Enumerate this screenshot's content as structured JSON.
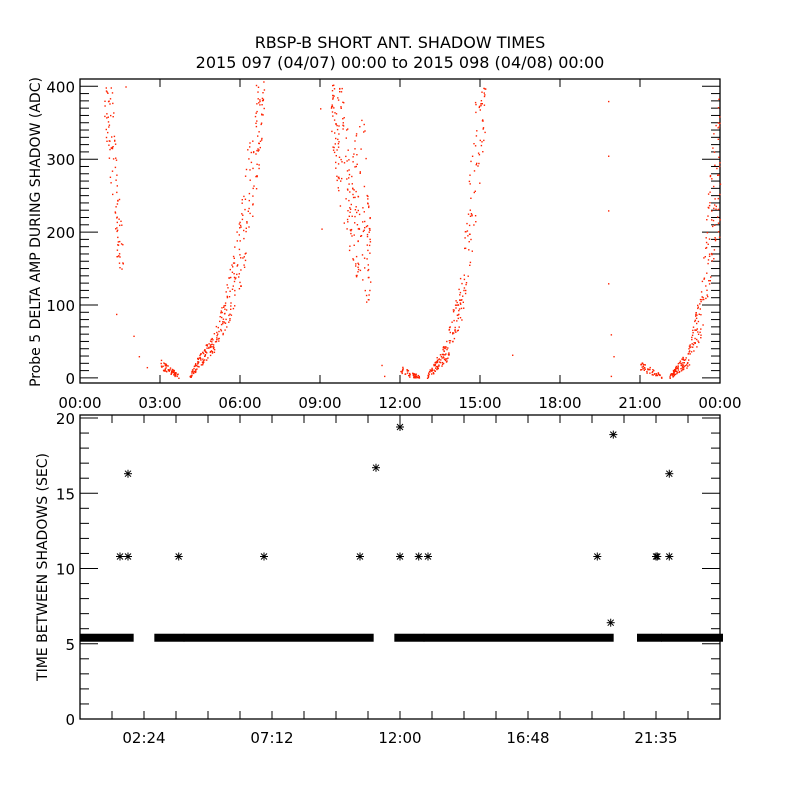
{
  "title": "RBSP-B SHORT ANT. SHADOW TIMES",
  "subtitle": "2015 097 (04/07) 00:00 to 2015 098 (04/08) 00:00",
  "colors": {
    "points_top": "#ff2200",
    "points_bottom": "#000000",
    "axes": "#000000"
  },
  "chart_data": [
    {
      "type": "scatter",
      "title": "RBSP-B SHORT ANT. SHADOW TIMES",
      "xlabel": "",
      "ylabel": "Probe 5 DELTA AMP DURING SHADOW (ADC)",
      "x_unit": "hours since 2015-04-07 00:00",
      "xlim": [
        0,
        24
      ],
      "ylim": [
        -7,
        410
      ],
      "x_ticks": [
        0,
        3,
        6,
        9,
        12,
        15,
        18,
        21,
        24
      ],
      "x_tick_labels": [
        "00:00",
        "03:00",
        "06:00",
        "09:00",
        "12:00",
        "15:00",
        "18:00",
        "21:00",
        "00:00"
      ],
      "y_ticks": [
        0,
        100,
        200,
        300,
        400
      ],
      "y_tick_labels": [
        "0",
        "100",
        "200",
        "300",
        "400"
      ],
      "clusters": [
        {
          "density": 90,
          "envelope": [
            [
              0.9,
              340,
              405
            ],
            [
              1.2,
              250,
              400
            ],
            [
              1.4,
              150,
              260
            ],
            [
              1.6,
              105,
              210
            ]
          ]
        },
        {
          "density": 60,
          "envelope": [
            [
              3.0,
              12,
              26
            ],
            [
              3.35,
              6,
              16
            ],
            [
              3.7,
              0,
              5
            ]
          ]
        },
        {
          "density": 300,
          "envelope": [
            [
              4.1,
              0,
              5
            ],
            [
              4.6,
              20,
              45
            ],
            [
              5.0,
              35,
              60
            ],
            [
              5.5,
              70,
              130
            ],
            [
              6.0,
              120,
              230
            ],
            [
              6.5,
              230,
              400
            ],
            [
              6.9,
              350,
              410
            ]
          ]
        },
        {
          "density": 220,
          "envelope": [
            [
              9.4,
              330,
              410
            ],
            [
              9.8,
              220,
              400
            ],
            [
              10.2,
              150,
              320
            ],
            [
              10.6,
              120,
              380
            ],
            [
              10.9,
              80,
              200
            ]
          ]
        },
        {
          "density": 50,
          "envelope": [
            [
              12.0,
              5,
              20
            ],
            [
              12.35,
              2,
              10
            ],
            [
              12.7,
              0,
              5
            ]
          ]
        },
        {
          "density": 230,
          "envelope": [
            [
              13.0,
              0,
              5
            ],
            [
              13.7,
              20,
              50
            ],
            [
              14.3,
              80,
              150
            ],
            [
              14.8,
              200,
              380
            ],
            [
              15.2,
              350,
              410
            ]
          ]
        },
        {
          "density": 50,
          "envelope": [
            [
              21.0,
              10,
              25
            ],
            [
              21.4,
              4,
              14
            ],
            [
              21.8,
              0,
              5
            ]
          ]
        },
        {
          "density": 230,
          "envelope": [
            [
              22.1,
              0,
              5
            ],
            [
              22.8,
              15,
              40
            ],
            [
              23.3,
              60,
              130
            ],
            [
              23.7,
              150,
              330
            ],
            [
              24.0,
              200,
              400
            ]
          ]
        }
      ],
      "points": [
        [
          1.35,
          88
        ],
        [
          1.7,
          400
        ],
        [
          2.0,
          58
        ],
        [
          2.2,
          30
        ],
        [
          2.5,
          15
        ],
        [
          9.0,
          370
        ],
        [
          9.05,
          205
        ],
        [
          11.3,
          18
        ],
        [
          11.4,
          3
        ],
        [
          16.2,
          32
        ],
        [
          19.8,
          380
        ],
        [
          19.8,
          305
        ],
        [
          19.8,
          230
        ],
        [
          19.8,
          130
        ],
        [
          19.9,
          60
        ],
        [
          20.0,
          30
        ],
        [
          19.9,
          3
        ]
      ]
    },
    {
      "type": "scatter",
      "xlabel": "",
      "ylabel": "TIME BETWEEN SHADOWS (SEC)",
      "x_unit": "hours since 2015-04-07 00:00",
      "xlim": [
        0,
        24
      ],
      "ylim": [
        0,
        20.2
      ],
      "x_ticks": [
        2.4,
        7.2,
        12.0,
        16.8,
        21.6
      ],
      "x_tick_labels": [
        "02:24",
        "07:12",
        "12:00",
        "16:48",
        "21:35"
      ],
      "y_ticks": [
        0,
        5,
        10,
        15,
        20
      ],
      "y_tick_labels": [
        "0",
        "5",
        "10",
        "15",
        "20"
      ],
      "bands": {
        "value": 5.4,
        "ranges": [
          [
            0,
            1.9
          ],
          [
            2.9,
            3.8
          ],
          [
            4.0,
            10.9
          ],
          [
            11.9,
            12.8
          ],
          [
            13.0,
            19.9
          ],
          [
            21.0,
            21.7
          ],
          [
            21.9,
            24
          ]
        ]
      },
      "points": [
        [
          1.5,
          10.8
        ],
        [
          1.8,
          10.8
        ],
        [
          1.8,
          16.3
        ],
        [
          3.7,
          10.8
        ],
        [
          6.9,
          10.8
        ],
        [
          10.5,
          10.8
        ],
        [
          11.1,
          16.7
        ],
        [
          12.0,
          19.4
        ],
        [
          12.0,
          10.8
        ],
        [
          12.7,
          10.8
        ],
        [
          13.05,
          10.8
        ],
        [
          19.4,
          10.8
        ],
        [
          19.9,
          6.4
        ],
        [
          20.0,
          18.9
        ],
        [
          21.6,
          10.8
        ],
        [
          21.65,
          10.8
        ],
        [
          22.1,
          10.8
        ],
        [
          22.1,
          16.3
        ]
      ]
    }
  ]
}
